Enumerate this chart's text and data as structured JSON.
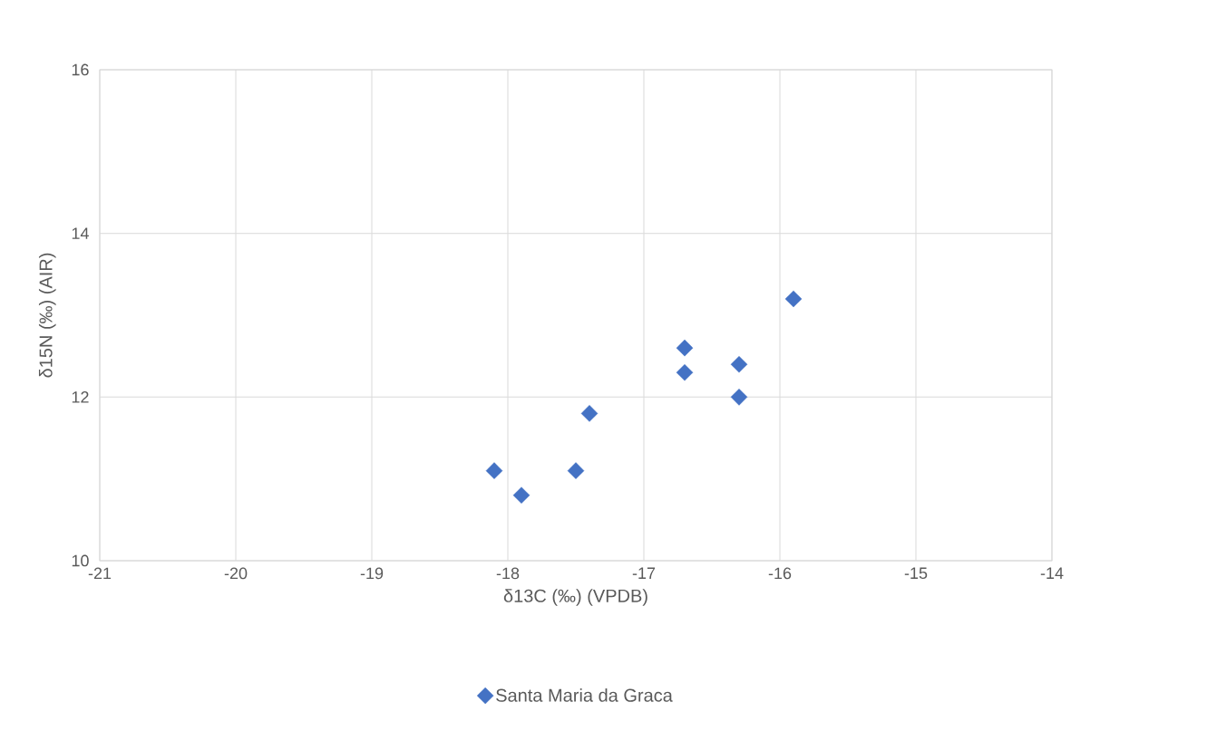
{
  "chart_data": {
    "type": "scatter",
    "xlabel": "δ13C (‰) (VPDB)",
    "ylabel": "δ15N (‰) (AIR)",
    "xlim": [
      -21,
      -14
    ],
    "xticks": [
      -21,
      -20,
      -19,
      -18,
      -17,
      -16,
      -15,
      -14
    ],
    "ylim": [
      10,
      16
    ],
    "yticks": [
      10,
      12,
      14,
      16
    ],
    "grid": true,
    "legend": "bottom",
    "marker": "diamond",
    "series": [
      {
        "name": "Santa Maria da Graca",
        "color": "#4472c4",
        "x": [
          -18.1,
          -17.9,
          -17.5,
          -17.4,
          -16.7,
          -16.7,
          -16.3,
          -16.3,
          -15.9
        ],
        "values": [
          11.1,
          10.8,
          11.1,
          11.8,
          12.6,
          12.3,
          12.4,
          12.0,
          13.2
        ]
      }
    ]
  }
}
